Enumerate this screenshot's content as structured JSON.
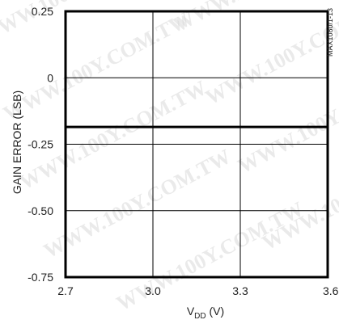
{
  "chart_data": {
    "type": "line",
    "xlabel_main": "V",
    "xlabel_sub": "DD",
    "xlabel_unit": " (V)",
    "ylabel": "GAIN ERROR (LSB)",
    "chart_id": "MAX1080/1-13",
    "xlim": [
      2.7,
      3.6
    ],
    "ylim": [
      -0.75,
      0.25
    ],
    "x_ticks": [
      "2.7",
      "3.0",
      "3.3",
      "3.6"
    ],
    "x_tick_values": [
      2.7,
      3.0,
      3.3,
      3.6
    ],
    "y_ticks": [
      "0.25",
      "0",
      "-0.25",
      "-0.50",
      "-0.75"
    ],
    "y_tick_values": [
      0.25,
      0,
      -0.25,
      -0.5,
      -0.75
    ],
    "grid": true,
    "series": [
      {
        "x": [
          2.7,
          3.6
        ],
        "y": [
          -0.185,
          -0.185
        ]
      }
    ],
    "series_color": "#000000"
  },
  "watermark": "WWW.100Y.COM.TW"
}
